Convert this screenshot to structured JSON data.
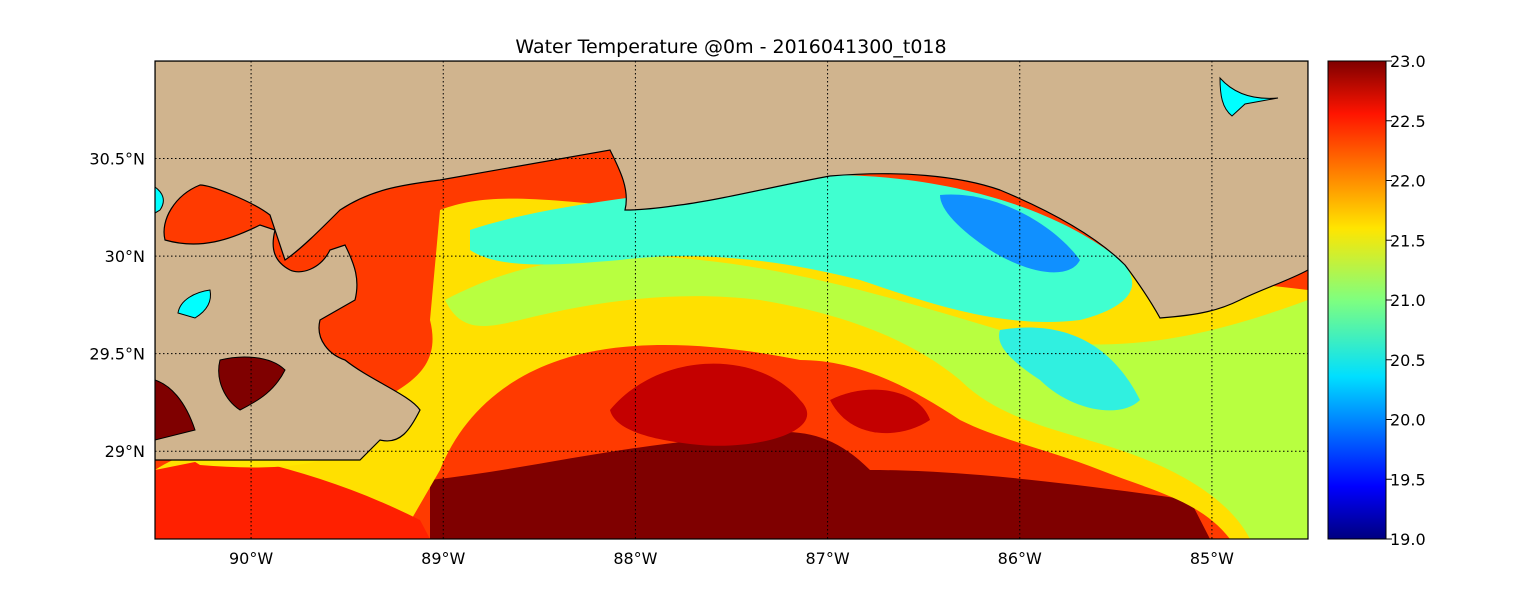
{
  "title": "Water Temperature @0m - 2016041300_t018",
  "map": {
    "lon_range": [
      -90.5,
      -84.5
    ],
    "lat_range": [
      28.55,
      31.0
    ],
    "land_color": "#d0b48e",
    "coastline_color": "#000000",
    "grid": "dotted",
    "x_ticks": [
      {
        "lon": -90,
        "label": "90°W"
      },
      {
        "lon": -89,
        "label": "89°W"
      },
      {
        "lon": -88,
        "label": "88°W"
      },
      {
        "lon": -87,
        "label": "87°W"
      },
      {
        "lon": -86,
        "label": "86°W"
      },
      {
        "lon": -85,
        "label": "85°W"
      }
    ],
    "y_ticks": [
      {
        "lat": 30.5,
        "label": "30.5°N"
      },
      {
        "lat": 30.0,
        "label": "30°N"
      },
      {
        "lat": 29.5,
        "label": "29.5°N"
      },
      {
        "lat": 29.0,
        "label": "29°N"
      }
    ]
  },
  "colorbar": {
    "colormap": "jet",
    "vmin": 19.0,
    "vmax": 23.0,
    "ticks": [
      {
        "value": 23.0,
        "label": "23.0"
      },
      {
        "value": 22.5,
        "label": "22.5"
      },
      {
        "value": 22.0,
        "label": "22.0"
      },
      {
        "value": 21.5,
        "label": "21.5"
      },
      {
        "value": 21.0,
        "label": "21.0"
      },
      {
        "value": 20.5,
        "label": "20.5"
      },
      {
        "value": 20.0,
        "label": "20.0"
      },
      {
        "value": 19.5,
        "label": "19.5"
      },
      {
        "value": 19.0,
        "label": "19.0"
      }
    ]
  }
}
